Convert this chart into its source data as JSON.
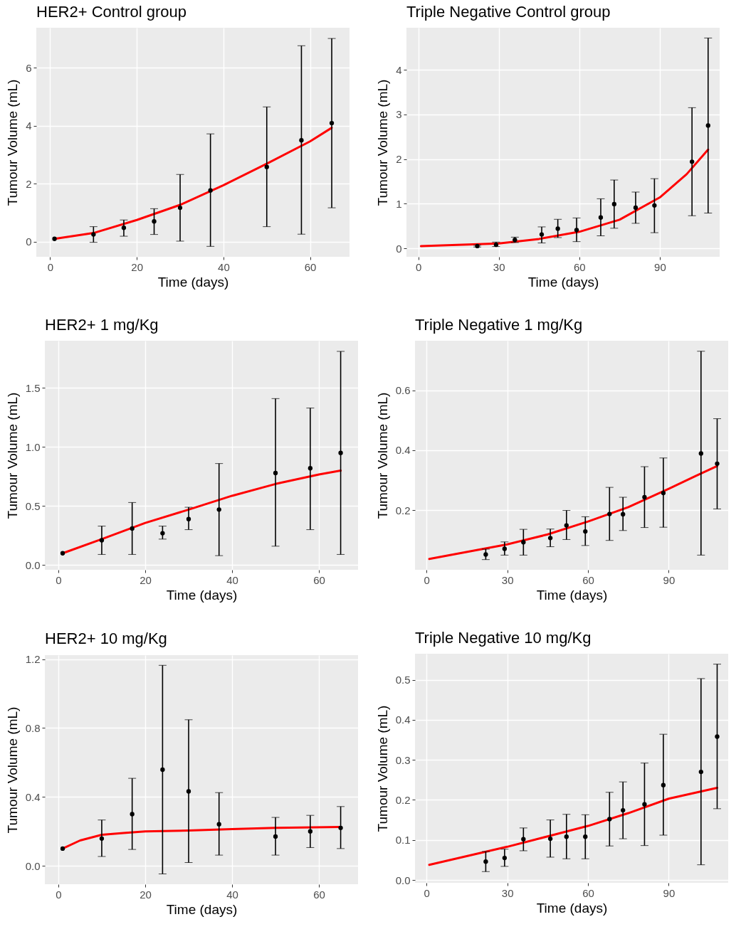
{
  "chart_data": [
    {
      "type": "scatter",
      "title": "HER2+ Control group",
      "xlabel": "Time (days)",
      "ylabel": "Tumour Volume (mL)",
      "xlim": [
        -3.2,
        69.1
      ],
      "ylim": [
        -0.52,
        7.38
      ],
      "xticks": [
        0,
        20,
        40,
        60
      ],
      "yticks": [
        0,
        2,
        4,
        6
      ],
      "grid": true,
      "series": [
        {
          "type": "line",
          "color": "#ff0000",
          "line_style": "solid",
          "marker": "none",
          "x": [
            1,
            10,
            20,
            30,
            40,
            50,
            60,
            65
          ],
          "values": [
            0.1,
            0.3,
            0.75,
            1.27,
            1.95,
            2.69,
            3.46,
            3.93
          ]
        },
        {
          "type": "scatter",
          "color": "#000000",
          "marker": "circle",
          "x": [
            1,
            10,
            17,
            24,
            30,
            37,
            50,
            58,
            65
          ],
          "values": [
            0.1,
            0.25,
            0.48,
            0.7,
            1.17,
            1.77,
            2.58,
            3.5,
            4.09
          ],
          "errors": [
            null,
            [
              -0.02,
              0.52
            ],
            [
              0.19,
              0.75
            ],
            [
              0.25,
              1.14
            ],
            [
              0.02,
              2.32
            ],
            [
              -0.16,
              3.72
            ],
            [
              0.52,
              4.65
            ],
            [
              0.26,
              6.76
            ],
            [
              1.17,
              7.01
            ]
          ]
        }
      ]
    },
    {
      "type": "scatter",
      "title": "Triple Negative Control group",
      "xlabel": "Time (days)",
      "ylabel": "Tumour Volume (mL)",
      "xlim": [
        -4.4,
        112.3
      ],
      "ylim": [
        -0.19,
        4.94
      ],
      "xticks": [
        0,
        30,
        60,
        90
      ],
      "yticks": [
        0,
        1,
        2,
        3,
        4
      ],
      "grid": true,
      "series": [
        {
          "type": "line",
          "color": "#ff0000",
          "line_style": "solid",
          "marker": "none",
          "x": [
            1,
            30,
            45,
            60,
            75,
            90,
            100,
            108
          ],
          "values": [
            0.05,
            0.11,
            0.21,
            0.37,
            0.64,
            1.14,
            1.66,
            2.21
          ]
        },
        {
          "type": "scatter",
          "color": "#000000",
          "marker": "circle",
          "x": [
            22,
            29,
            36,
            46,
            52,
            59,
            68,
            73,
            81,
            88,
            102,
            108
          ],
          "values": [
            0.05,
            0.08,
            0.19,
            0.31,
            0.44,
            0.41,
            0.69,
            0.99,
            0.91,
            0.96,
            1.94,
            2.75
          ],
          "errors": [
            [
              0.03,
              0.07
            ],
            [
              0.04,
              0.14
            ],
            [
              0.13,
              0.25
            ],
            [
              0.12,
              0.48
            ],
            [
              0.24,
              0.65
            ],
            [
              0.15,
              0.68
            ],
            [
              0.28,
              1.11
            ],
            [
              0.45,
              1.53
            ],
            [
              0.56,
              1.26
            ],
            [
              0.35,
              1.56
            ],
            [
              0.73,
              3.15
            ],
            [
              0.79,
              4.71
            ]
          ]
        }
      ]
    },
    {
      "type": "scatter",
      "title": "HER2+ 1 mg/Kg",
      "xlabel": "Time (days)",
      "ylabel": "Tumour Volume (mL)",
      "xlim": [
        -3.1,
        69.0
      ],
      "ylim": [
        -0.04,
        1.9
      ],
      "xticks": [
        0,
        20,
        40,
        60
      ],
      "yticks": [
        {
          "value": 0,
          "label": "0.0"
        },
        {
          "value": 0.5,
          "label": "0.5"
        },
        {
          "value": 1,
          "label": "1.0"
        },
        {
          "value": 1.5,
          "label": "1.5"
        }
      ],
      "grid": true,
      "series": [
        {
          "type": "line",
          "color": "#ff0000",
          "line_style": "solid",
          "marker": "none",
          "x": [
            1,
            10,
            20,
            30,
            40,
            50,
            60,
            65
          ],
          "values": [
            0.1,
            0.22,
            0.357,
            0.47,
            0.587,
            0.687,
            0.767,
            0.8
          ]
        },
        {
          "type": "scatter",
          "color": "#000000",
          "marker": "circle",
          "x": [
            1,
            10,
            17,
            24,
            30,
            37,
            50,
            58,
            65
          ],
          "values": [
            0.1,
            0.21,
            0.31,
            0.27,
            0.39,
            0.47,
            0.78,
            0.82,
            0.95
          ],
          "errors": [
            null,
            [
              0.09,
              0.33
            ],
            [
              0.09,
              0.53
            ],
            [
              0.22,
              0.33
            ],
            [
              0.3,
              0.49
            ],
            [
              0.08,
              0.86
            ],
            [
              0.16,
              1.41
            ],
            [
              0.3,
              1.33
            ],
            [
              0.09,
              1.81
            ]
          ]
        }
      ]
    },
    {
      "type": "scatter",
      "title": "Triple Negative 1 mg/Kg",
      "xlabel": "Time (days)",
      "ylabel": "Tumour Volume (mL)",
      "xlim": [
        -4.3,
        112.1
      ],
      "ylim": [
        0.001,
        0.765
      ],
      "xticks": [
        0,
        30,
        60,
        90
      ],
      "yticks": [
        0.2,
        0.4,
        0.6
      ],
      "grid": true,
      "series": [
        {
          "type": "line",
          "color": "#ff0000",
          "line_style": "solid",
          "marker": "none",
          "x": [
            1,
            30,
            45,
            60,
            75,
            90,
            100,
            108
          ],
          "values": [
            0.037,
            0.086,
            0.119,
            0.162,
            0.21,
            0.271,
            0.314,
            0.347
          ]
        },
        {
          "type": "scatter",
          "color": "#000000",
          "marker": "circle",
          "x": [
            22,
            29,
            36,
            46,
            52,
            59,
            68,
            73,
            81,
            88,
            102,
            108
          ],
          "values": [
            0.052,
            0.071,
            0.093,
            0.107,
            0.149,
            0.129,
            0.187,
            0.186,
            0.243,
            0.257,
            0.389,
            0.355
          ],
          "errors": [
            [
              0.035,
              0.07
            ],
            [
              0.05,
              0.094
            ],
            [
              0.05,
              0.136
            ],
            [
              0.078,
              0.137
            ],
            [
              0.102,
              0.199
            ],
            [
              0.082,
              0.178
            ],
            [
              0.099,
              0.276
            ],
            [
              0.132,
              0.243
            ],
            [
              0.142,
              0.345
            ],
            [
              0.143,
              0.374
            ],
            [
              0.05,
              0.73
            ],
            [
              0.204,
              0.505
            ]
          ]
        }
      ]
    },
    {
      "type": "scatter",
      "title": "HER2+ 10 mg/Kg",
      "xlabel": "Time (days)",
      "ylabel": "Tumour Volume (mL)",
      "xlim": [
        -3.1,
        69.0
      ],
      "ylim": [
        -0.107,
        1.223
      ],
      "xticks": [
        0,
        20,
        40,
        60
      ],
      "yticks": [
        {
          "value": 0,
          "label": "0.0"
        },
        {
          "value": 0.4,
          "label": "0.4"
        },
        {
          "value": 0.8,
          "label": "0.8"
        },
        {
          "value": 1.2,
          "label": "1.2"
        }
      ],
      "grid": true,
      "series": [
        {
          "type": "line",
          "color": "#ff0000",
          "line_style": "solid",
          "marker": "none",
          "x": [
            1,
            5,
            10,
            15,
            20,
            30,
            40,
            50,
            65
          ],
          "values": [
            0.1,
            0.147,
            0.18,
            0.19,
            0.2,
            0.205,
            0.213,
            0.22,
            0.225
          ]
        },
        {
          "type": "scatter",
          "color": "#000000",
          "marker": "circle",
          "x": [
            1,
            10,
            17,
            24,
            30,
            37,
            50,
            58,
            65
          ],
          "values": [
            0.1,
            0.158,
            0.3,
            0.558,
            0.432,
            0.241,
            0.17,
            0.2,
            0.22
          ],
          "errors": [
            null,
            [
              0.054,
              0.266
            ],
            [
              0.095,
              0.508
            ],
            [
              -0.047,
              1.164
            ],
            [
              0.019,
              0.848
            ],
            [
              0.062,
              0.425
            ],
            [
              0.062,
              0.281
            ],
            [
              0.106,
              0.293
            ],
            [
              0.1,
              0.344
            ]
          ]
        }
      ]
    },
    {
      "type": "scatter",
      "title": "Triple Negative 10 mg/Kg",
      "xlabel": "Time (days)",
      "ylabel": "Tumour Volume (mL)",
      "xlim": [
        -4.3,
        112.1
      ],
      "ylim": [
        -0.007,
        0.565
      ],
      "xticks": [
        0,
        30,
        60,
        90
      ],
      "yticks": [
        {
          "value": 0,
          "label": "0.0"
        },
        0.1,
        0.2,
        0.3,
        0.4,
        0.5
      ],
      "grid": true,
      "series": [
        {
          "type": "line",
          "color": "#ff0000",
          "line_style": "solid",
          "marker": "none",
          "x": [
            1,
            30,
            45,
            60,
            75,
            90,
            108
          ],
          "values": [
            0.038,
            0.083,
            0.109,
            0.135,
            0.167,
            0.203,
            0.23
          ]
        },
        {
          "type": "scatter",
          "color": "#000000",
          "marker": "circle",
          "x": [
            22,
            29,
            36,
            46,
            52,
            59,
            68,
            73,
            81,
            88,
            102,
            108
          ],
          "values": [
            0.046,
            0.055,
            0.102,
            0.103,
            0.108,
            0.108,
            0.152,
            0.174,
            0.189,
            0.237,
            0.27,
            0.358
          ],
          "errors": [
            [
              0.021,
              0.071
            ],
            [
              0.034,
              0.077
            ],
            [
              0.073,
              0.13
            ],
            [
              0.057,
              0.15
            ],
            [
              0.053,
              0.164
            ],
            [
              0.053,
              0.163
            ],
            [
              0.085,
              0.219
            ],
            [
              0.103,
              0.245
            ],
            [
              0.086,
              0.292
            ],
            [
              0.112,
              0.364
            ],
            [
              0.038,
              0.503
            ],
            [
              0.178,
              0.539
            ]
          ]
        }
      ]
    }
  ]
}
